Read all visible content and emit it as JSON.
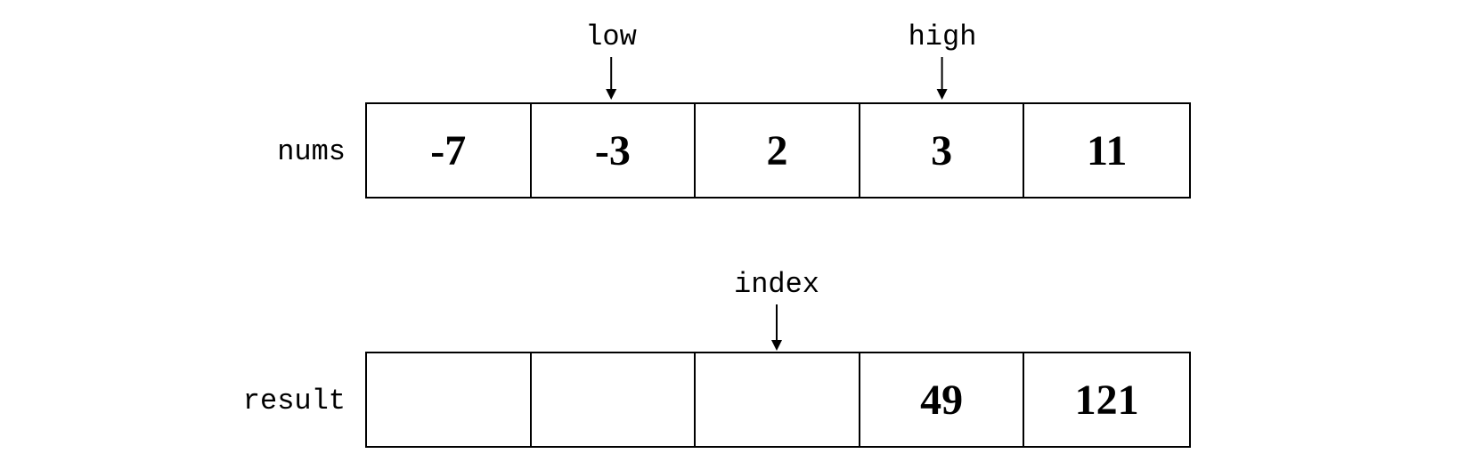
{
  "arrays": {
    "nums": {
      "label": "nums",
      "cells": [
        "-7",
        "-3",
        "2",
        "3",
        "11"
      ]
    },
    "result": {
      "label": "result",
      "cells": [
        "",
        "",
        "",
        "49",
        "121"
      ]
    }
  },
  "pointers": {
    "low": {
      "label": "low",
      "array": "nums",
      "cell_index": 1
    },
    "high": {
      "label": "high",
      "array": "nums",
      "cell_index": 3
    },
    "index": {
      "label": "index",
      "array": "result",
      "cell_index": 2
    }
  }
}
